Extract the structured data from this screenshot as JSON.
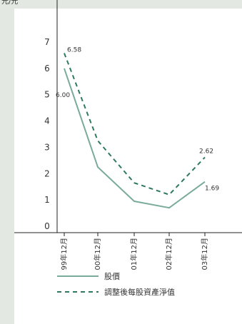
{
  "chart_data": {
    "type": "line",
    "unit_label": "元/元",
    "categories": [
      "99年12月",
      "00年12月",
      "01年12月",
      "02年12月",
      "03年12月"
    ],
    "ylim": [
      0,
      7
    ],
    "yticks": [
      0,
      1,
      2,
      3,
      4,
      5,
      6,
      7
    ],
    "series": [
      {
        "name": "股價",
        "style": "solid",
        "color": "#7aab9a",
        "values": [
          6.0,
          2.25,
          0.95,
          0.7,
          1.69
        ],
        "labels": [
          "6.00",
          "",
          "",
          "",
          "1.69"
        ]
      },
      {
        "name": "調整後每股資產淨值",
        "style": "dashed",
        "color": "#2f7a5e",
        "values": [
          6.58,
          3.25,
          1.65,
          1.2,
          2.62
        ],
        "labels": [
          "6.58",
          "",
          "",
          "",
          "2.62"
        ]
      }
    ],
    "legend_position": "bottom"
  }
}
